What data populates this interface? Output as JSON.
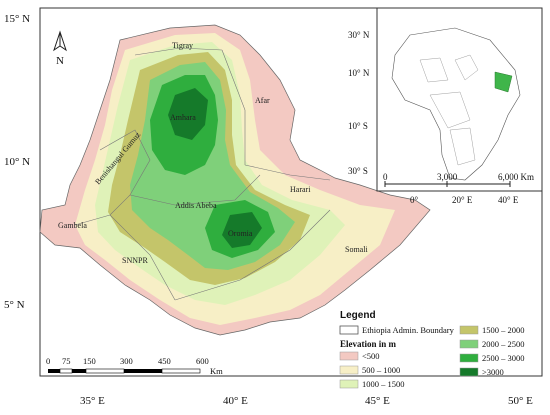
{
  "axes": {
    "lat_labels": [
      "15° N",
      "10° N",
      "5° N"
    ],
    "lon_labels": [
      "35° E",
      "40° E",
      "45° E",
      "50° E"
    ]
  },
  "north_arrow": {
    "label": "N"
  },
  "regions": [
    "Tigray",
    "Afar",
    "Amhara",
    "Benishangul Gumuz",
    "Addis Abeba",
    "Harari",
    "Gambela",
    "Oromia",
    "SNNPR",
    "Somali"
  ],
  "inset": {
    "lat_labels": [
      "30° N",
      "10° N",
      "10° S",
      "30° S"
    ],
    "lon_labels": [
      "0°",
      "20° E",
      "40° E"
    ],
    "scale_labels": [
      "0",
      "3,000",
      "6,000 Km"
    ]
  },
  "scalebar": {
    "labels": [
      "0",
      "75",
      "150",
      "300",
      "450",
      "600"
    ],
    "unit": "Km"
  },
  "legend": {
    "title": "Legend",
    "boundary_label": "Ethiopia Admin. Boundary",
    "elevation_title": "Elevation in m",
    "classes": [
      {
        "label": "<500",
        "color": "#f3c9c2"
      },
      {
        "label": "500 – 1000",
        "color": "#f7efc6"
      },
      {
        "label": "1000 – 1500",
        "color": "#dff2b8"
      },
      {
        "label": "1500 – 2000",
        "color": "#c4c56a"
      },
      {
        "label": "2000 – 2500",
        "color": "#7fd07a"
      },
      {
        "label": "2500 – 3000",
        "color": "#2fae3e"
      },
      {
        "label": ">3000",
        "color": "#157a2a"
      }
    ]
  }
}
